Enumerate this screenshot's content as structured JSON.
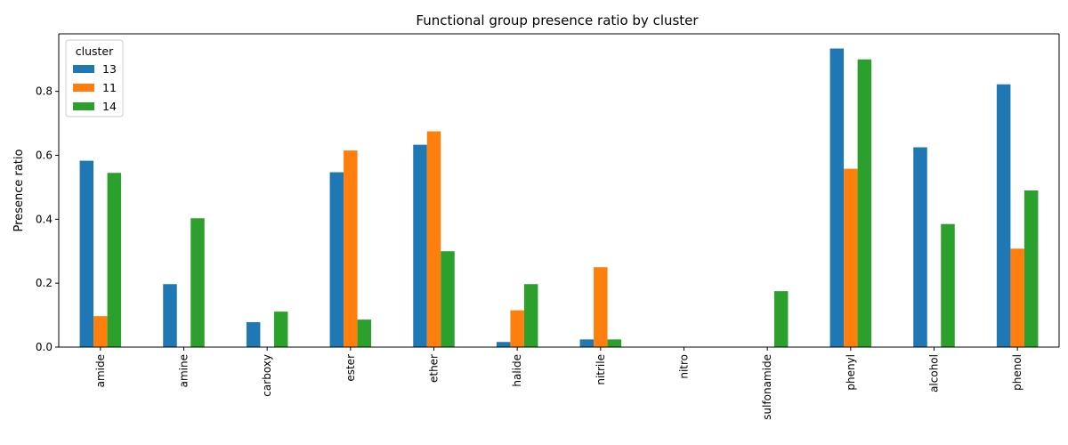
{
  "chart_data": {
    "type": "bar",
    "title": "Functional group presence ratio by cluster",
    "xlabel": "",
    "ylabel": "Presence ratio",
    "categories": [
      "amide",
      "amine",
      "carboxy",
      "ester",
      "ether",
      "halide",
      "nitrile",
      "nitro",
      "sulfonamide",
      "phenyl",
      "alcohol",
      "phenol"
    ],
    "series": [
      {
        "name": "13",
        "color": "#1f77b4",
        "values": [
          0.583,
          0.197,
          0.078,
          0.547,
          0.633,
          0.016,
          0.024,
          0.0,
          0.0,
          0.934,
          0.625,
          0.822
        ]
      },
      {
        "name": "11",
        "color": "#ff7f0e",
        "values": [
          0.097,
          0.0,
          0.0,
          0.615,
          0.675,
          0.115,
          0.25,
          0.0,
          0.0,
          0.558,
          0.0,
          0.308
        ]
      },
      {
        "name": "14",
        "color": "#2ca02c",
        "values": [
          0.545,
          0.403,
          0.111,
          0.086,
          0.3,
          0.197,
          0.024,
          0.0,
          0.175,
          0.9,
          0.385,
          0.49
        ]
      }
    ],
    "ylim": [
      0,
      0.98
    ],
    "yticks": [
      0.0,
      0.2,
      0.4,
      0.6,
      0.8
    ],
    "ytick_labels": [
      "0.0",
      "0.2",
      "0.4",
      "0.6",
      "0.8"
    ],
    "legend": {
      "title": "cluster",
      "placement": "top-left"
    },
    "grid": false
  }
}
